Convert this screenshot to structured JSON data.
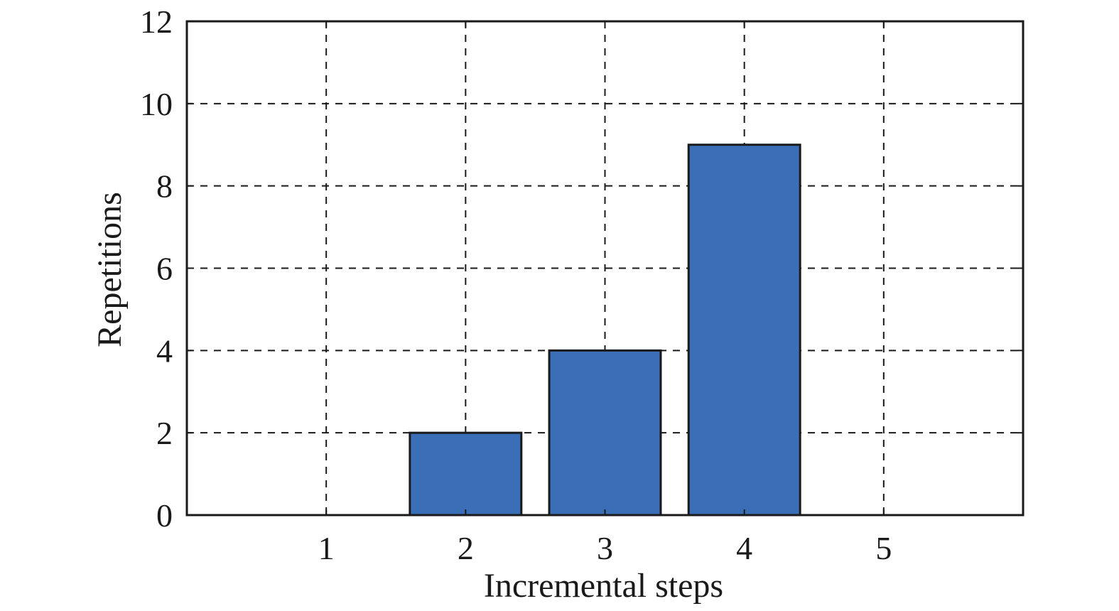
{
  "chart_data": {
    "type": "bar",
    "categories": [
      "1",
      "2",
      "3",
      "4",
      "5"
    ],
    "values": [
      0,
      2,
      4,
      9,
      0
    ],
    "title": "",
    "xlabel": "Incremental steps",
    "ylabel": "Repetitions",
    "ylim": [
      0,
      12
    ],
    "xlim": [
      0,
      6
    ],
    "yticks": [
      "0",
      "2",
      "4",
      "6",
      "8",
      "10",
      "12"
    ],
    "xticks": [
      "1",
      "2",
      "3",
      "4",
      "5"
    ],
    "grid": true,
    "grid_style": "dashed",
    "bar_color": "#3a6fb7",
    "edge_color": "#1a1a1a"
  }
}
